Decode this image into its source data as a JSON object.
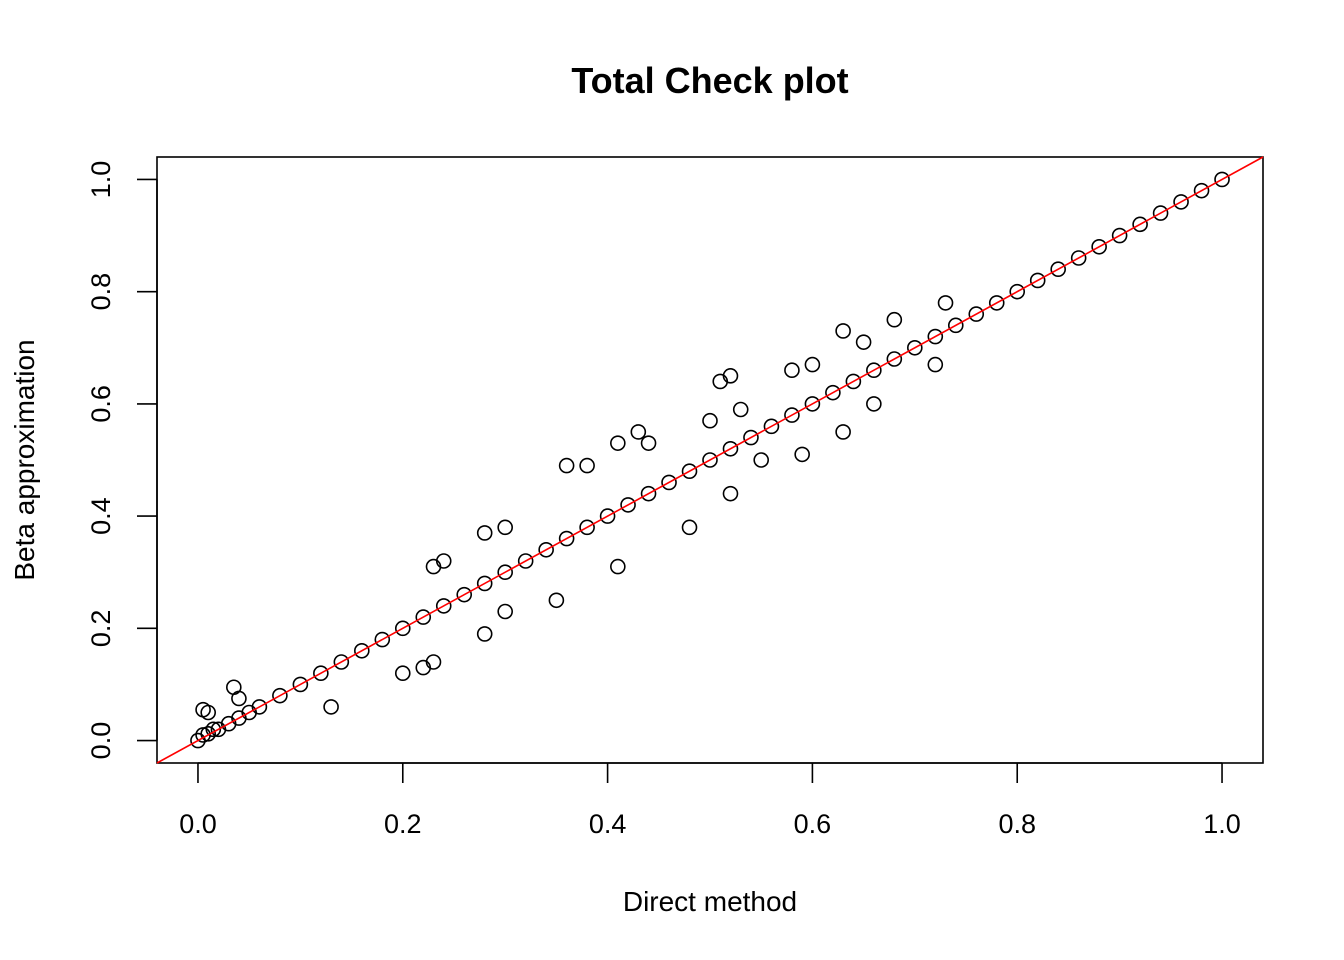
{
  "chart_data": {
    "type": "scatter",
    "title": "Total Check plot",
    "xlabel": "Direct method",
    "ylabel": "Beta approximation",
    "xlim": [
      -0.04,
      1.04
    ],
    "ylim": [
      -0.04,
      1.04
    ],
    "x_ticks": [
      "0.0",
      "0.2",
      "0.4",
      "0.6",
      "0.8",
      "1.0"
    ],
    "y_ticks": [
      "0.0",
      "0.2",
      "0.4",
      "0.6",
      "0.8",
      "1.0"
    ],
    "reference_line": {
      "intercept": 0,
      "slope": 1,
      "color": "#ff0000"
    },
    "marker": {
      "shape": "open-circle",
      "color": "#000000"
    },
    "grid": false,
    "legend": "none",
    "points": {
      "x": [
        0.0,
        0.005,
        0.01,
        0.015,
        0.02,
        0.03,
        0.04,
        0.05,
        0.06,
        0.08,
        0.1,
        0.12,
        0.14,
        0.16,
        0.18,
        0.2,
        0.22,
        0.24,
        0.26,
        0.28,
        0.3,
        0.32,
        0.34,
        0.36,
        0.38,
        0.4,
        0.42,
        0.44,
        0.46,
        0.48,
        0.5,
        0.52,
        0.54,
        0.56,
        0.58,
        0.6,
        0.62,
        0.64,
        0.66,
        0.68,
        0.7,
        0.72,
        0.74,
        0.76,
        0.78,
        0.8,
        0.82,
        0.84,
        0.86,
        0.88,
        0.9,
        0.92,
        0.94,
        0.96,
        0.98,
        1.0,
        0.005,
        0.01,
        0.035,
        0.04,
        0.13,
        0.23,
        0.24,
        0.28,
        0.3,
        0.36,
        0.38,
        0.41,
        0.43,
        0.44,
        0.5,
        0.51,
        0.52,
        0.53,
        0.58,
        0.6,
        0.63,
        0.65,
        0.68,
        0.73,
        0.2,
        0.22,
        0.23,
        0.28,
        0.3,
        0.35,
        0.41,
        0.48,
        0.52,
        0.55,
        0.59,
        0.63,
        0.66,
        0.72
      ],
      "y": [
        0.0,
        0.01,
        0.012,
        0.02,
        0.02,
        0.03,
        0.04,
        0.05,
        0.06,
        0.08,
        0.1,
        0.12,
        0.14,
        0.16,
        0.18,
        0.2,
        0.22,
        0.24,
        0.26,
        0.28,
        0.3,
        0.32,
        0.34,
        0.36,
        0.38,
        0.4,
        0.42,
        0.44,
        0.46,
        0.48,
        0.5,
        0.52,
        0.54,
        0.56,
        0.58,
        0.6,
        0.62,
        0.64,
        0.66,
        0.68,
        0.7,
        0.72,
        0.74,
        0.76,
        0.78,
        0.8,
        0.82,
        0.84,
        0.86,
        0.88,
        0.9,
        0.92,
        0.94,
        0.96,
        0.98,
        1.0,
        0.055,
        0.05,
        0.095,
        0.075,
        0.06,
        0.31,
        0.32,
        0.37,
        0.38,
        0.49,
        0.49,
        0.53,
        0.55,
        0.53,
        0.57,
        0.64,
        0.65,
        0.59,
        0.66,
        0.67,
        0.73,
        0.71,
        0.75,
        0.78,
        0.12,
        0.13,
        0.14,
        0.19,
        0.23,
        0.25,
        0.31,
        0.38,
        0.44,
        0.5,
        0.51,
        0.55,
        0.6,
        0.67
      ]
    }
  }
}
